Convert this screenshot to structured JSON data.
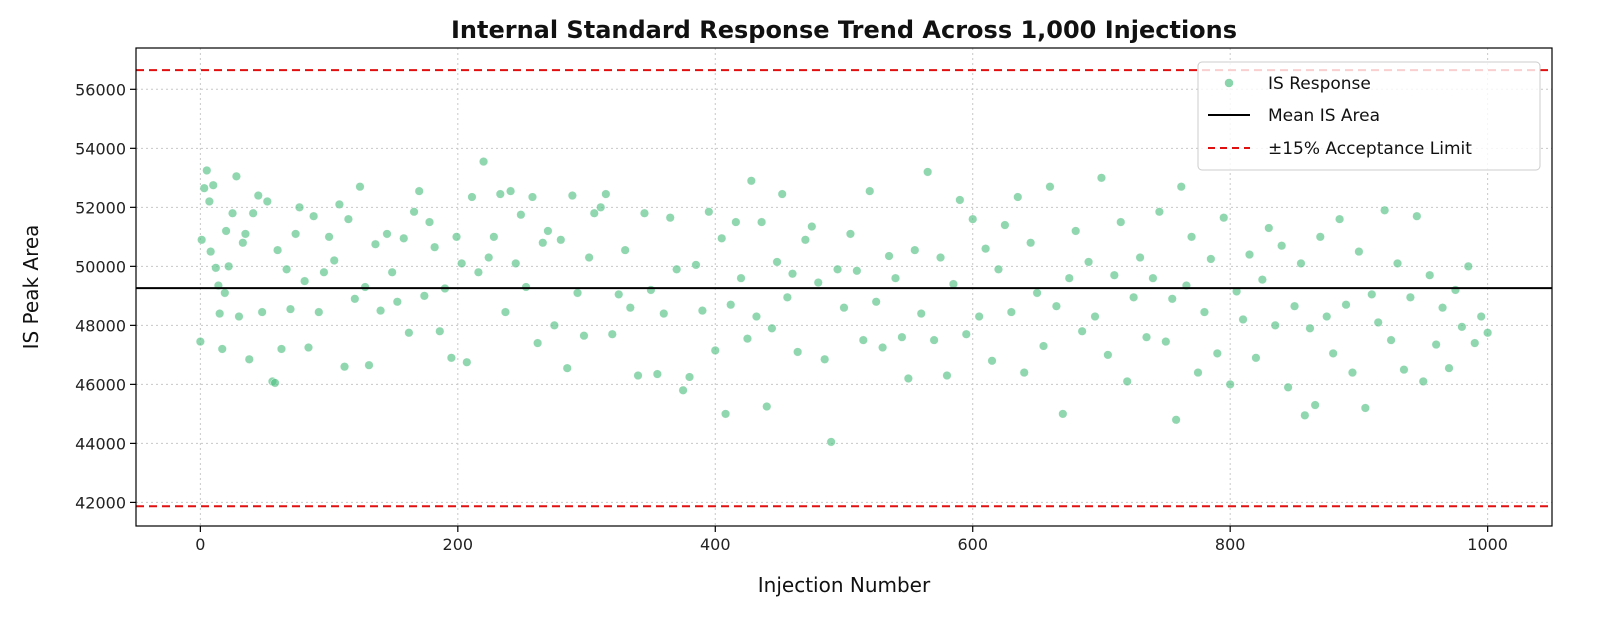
{
  "chart_data": {
    "type": "scatter",
    "title": "Internal Standard Response Trend Across 1,000 Injections",
    "xlabel": "Injection Number",
    "ylabel": "IS Peak Area",
    "xlim": [
      -50,
      1050
    ],
    "ylim": [
      41200,
      57400
    ],
    "x_ticks": [
      0,
      200,
      400,
      600,
      800,
      1000
    ],
    "x_tick_labels": [
      "0",
      "200",
      "400",
      "600",
      "800",
      "1000"
    ],
    "y_ticks": [
      42000,
      44000,
      46000,
      48000,
      50000,
      52000,
      54000,
      56000
    ],
    "y_tick_labels": [
      "42000",
      "44000",
      "46000",
      "48000",
      "50000",
      "52000",
      "54000",
      "56000"
    ],
    "grid": true,
    "legend": {
      "placement": "top-right",
      "entries": [
        {
          "label": "IS Response",
          "kind": "marker"
        },
        {
          "label": "Mean IS Area",
          "kind": "solid-line"
        },
        {
          "label": "±15% Acceptance Limit",
          "kind": "dashed-line"
        }
      ]
    },
    "colors": {
      "points": "#4cbf7f",
      "mean_line": "#000000",
      "limit_line": "#e01010",
      "grid": "#c8c8c8"
    },
    "reference_lines": {
      "mean": 49260,
      "upper_limit": 56650,
      "lower_limit": 41870
    },
    "series": [
      {
        "name": "IS Response",
        "n_points": 1000,
        "sampled_points": [
          [
            0,
            47450
          ],
          [
            1,
            50900
          ],
          [
            3,
            52650
          ],
          [
            5,
            53250
          ],
          [
            7,
            52200
          ],
          [
            8,
            50500
          ],
          [
            10,
            52750
          ],
          [
            12,
            49950
          ],
          [
            14,
            49350
          ],
          [
            15,
            48400
          ],
          [
            17,
            47200
          ],
          [
            19,
            49100
          ],
          [
            20,
            51200
          ],
          [
            22,
            50000
          ],
          [
            25,
            51800
          ],
          [
            28,
            53050
          ],
          [
            30,
            48300
          ],
          [
            33,
            50800
          ],
          [
            35,
            51100
          ],
          [
            38,
            46850
          ],
          [
            41,
            51800
          ],
          [
            45,
            52400
          ],
          [
            48,
            48450
          ],
          [
            52,
            52200
          ],
          [
            56,
            46100
          ],
          [
            58,
            46050
          ],
          [
            60,
            50550
          ],
          [
            63,
            47200
          ],
          [
            67,
            49900
          ],
          [
            70,
            48550
          ],
          [
            74,
            51100
          ],
          [
            77,
            52000
          ],
          [
            81,
            49500
          ],
          [
            84,
            47250
          ],
          [
            88,
            51700
          ],
          [
            92,
            48450
          ],
          [
            96,
            49800
          ],
          [
            100,
            51000
          ],
          [
            104,
            50200
          ],
          [
            108,
            52100
          ],
          [
            112,
            46600
          ],
          [
            115,
            51600
          ],
          [
            120,
            48900
          ],
          [
            124,
            52700
          ],
          [
            128,
            49300
          ],
          [
            131,
            46650
          ],
          [
            136,
            50750
          ],
          [
            140,
            48500
          ],
          [
            145,
            51100
          ],
          [
            149,
            49800
          ],
          [
            153,
            48800
          ],
          [
            158,
            50950
          ],
          [
            162,
            47750
          ],
          [
            166,
            51850
          ],
          [
            170,
            52550
          ],
          [
            174,
            49000
          ],
          [
            178,
            51500
          ],
          [
            182,
            50650
          ],
          [
            186,
            47800
          ],
          [
            190,
            49250
          ],
          [
            195,
            46900
          ],
          [
            199,
            51000
          ],
          [
            203,
            50100
          ],
          [
            207,
            46750
          ],
          [
            211,
            52350
          ],
          [
            216,
            49800
          ],
          [
            220,
            53550
          ],
          [
            224,
            50300
          ],
          [
            228,
            51000
          ],
          [
            233,
            52450
          ],
          [
            237,
            48450
          ],
          [
            241,
            52550
          ],
          [
            245,
            50100
          ],
          [
            249,
            51750
          ],
          [
            253,
            49300
          ],
          [
            258,
            52350
          ],
          [
            262,
            47400
          ],
          [
            266,
            50800
          ],
          [
            270,
            51200
          ],
          [
            275,
            48000
          ],
          [
            280,
            50900
          ],
          [
            285,
            46550
          ],
          [
            289,
            52400
          ],
          [
            293,
            49100
          ],
          [
            298,
            47650
          ],
          [
            302,
            50300
          ],
          [
            306,
            51800
          ],
          [
            311,
            52000
          ],
          [
            315,
            52450
          ],
          [
            320,
            47700
          ],
          [
            325,
            49050
          ],
          [
            330,
            50550
          ],
          [
            334,
            48600
          ],
          [
            340,
            46300
          ],
          [
            345,
            51800
          ],
          [
            350,
            49200
          ],
          [
            355,
            46350
          ],
          [
            360,
            48400
          ],
          [
            365,
            51650
          ],
          [
            370,
            49900
          ],
          [
            375,
            45800
          ],
          [
            380,
            46250
          ],
          [
            385,
            50050
          ],
          [
            390,
            48500
          ],
          [
            395,
            51850
          ],
          [
            400,
            47150
          ],
          [
            405,
            50950
          ],
          [
            408,
            45000
          ],
          [
            412,
            48700
          ],
          [
            416,
            51500
          ],
          [
            420,
            49600
          ],
          [
            425,
            47550
          ],
          [
            428,
            52900
          ],
          [
            432,
            48300
          ],
          [
            436,
            51500
          ],
          [
            440,
            45250
          ],
          [
            444,
            47900
          ],
          [
            448,
            50150
          ],
          [
            452,
            52450
          ],
          [
            456,
            48950
          ],
          [
            460,
            49750
          ],
          [
            464,
            47100
          ],
          [
            470,
            50900
          ],
          [
            475,
            51350
          ],
          [
            480,
            49450
          ],
          [
            485,
            46850
          ],
          [
            490,
            44050
          ],
          [
            495,
            49900
          ],
          [
            500,
            48600
          ],
          [
            505,
            51100
          ],
          [
            510,
            49850
          ],
          [
            515,
            47500
          ],
          [
            520,
            52550
          ],
          [
            525,
            48800
          ],
          [
            530,
            47250
          ],
          [
            535,
            50350
          ],
          [
            540,
            49600
          ],
          [
            545,
            47600
          ],
          [
            550,
            46200
          ],
          [
            555,
            50550
          ],
          [
            560,
            48400
          ],
          [
            565,
            53200
          ],
          [
            570,
            47500
          ],
          [
            575,
            50300
          ],
          [
            580,
            46300
          ],
          [
            585,
            49400
          ],
          [
            590,
            52250
          ],
          [
            595,
            47700
          ],
          [
            600,
            51600
          ],
          [
            605,
            48300
          ],
          [
            610,
            50600
          ],
          [
            615,
            46800
          ],
          [
            620,
            49900
          ],
          [
            625,
            51400
          ],
          [
            630,
            48450
          ],
          [
            635,
            52350
          ],
          [
            640,
            46400
          ],
          [
            645,
            50800
          ],
          [
            650,
            49100
          ],
          [
            655,
            47300
          ],
          [
            660,
            52700
          ],
          [
            665,
            48650
          ],
          [
            670,
            45000
          ],
          [
            675,
            49600
          ],
          [
            680,
            51200
          ],
          [
            685,
            47800
          ],
          [
            690,
            50150
          ],
          [
            695,
            48300
          ],
          [
            700,
            53000
          ],
          [
            705,
            47000
          ],
          [
            710,
            49700
          ],
          [
            715,
            51500
          ],
          [
            720,
            46100
          ],
          [
            725,
            48950
          ],
          [
            730,
            50300
          ],
          [
            735,
            47600
          ],
          [
            740,
            49600
          ],
          [
            745,
            51850
          ],
          [
            750,
            47450
          ],
          [
            755,
            48900
          ],
          [
            758,
            44800
          ],
          [
            762,
            52700
          ],
          [
            766,
            49350
          ],
          [
            770,
            51000
          ],
          [
            775,
            46400
          ],
          [
            780,
            48450
          ],
          [
            785,
            50250
          ],
          [
            790,
            47050
          ],
          [
            795,
            51650
          ],
          [
            800,
            46000
          ],
          [
            805,
            49150
          ],
          [
            810,
            48200
          ],
          [
            815,
            50400
          ],
          [
            820,
            46900
          ],
          [
            825,
            49550
          ],
          [
            830,
            51300
          ],
          [
            835,
            48000
          ],
          [
            840,
            50700
          ],
          [
            845,
            45900
          ],
          [
            850,
            48650
          ],
          [
            855,
            50100
          ],
          [
            858,
            44950
          ],
          [
            862,
            47900
          ],
          [
            866,
            45300
          ],
          [
            870,
            51000
          ],
          [
            875,
            48300
          ],
          [
            880,
            47050
          ],
          [
            885,
            51600
          ],
          [
            890,
            48700
          ],
          [
            895,
            46400
          ],
          [
            900,
            50500
          ],
          [
            905,
            45200
          ],
          [
            910,
            49050
          ],
          [
            915,
            48100
          ],
          [
            920,
            51900
          ],
          [
            925,
            47500
          ],
          [
            930,
            50100
          ],
          [
            935,
            46500
          ],
          [
            940,
            48950
          ],
          [
            945,
            51700
          ],
          [
            950,
            46100
          ],
          [
            955,
            49700
          ],
          [
            960,
            47350
          ],
          [
            965,
            48600
          ],
          [
            970,
            46550
          ],
          [
            975,
            49200
          ],
          [
            980,
            47950
          ],
          [
            985,
            50000
          ],
          [
            990,
            47400
          ],
          [
            995,
            48300
          ],
          [
            1000,
            47750
          ]
        ]
      }
    ]
  }
}
